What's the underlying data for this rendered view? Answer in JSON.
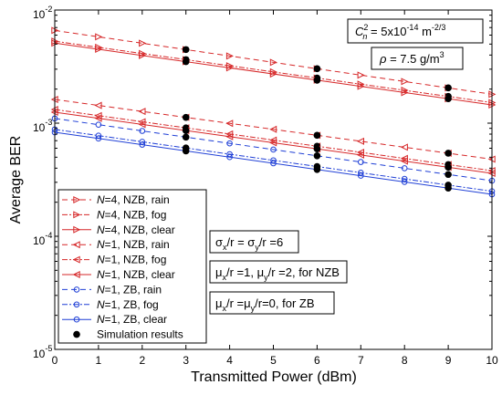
{
  "chart_data": {
    "type": "line",
    "xlabel": "Transmitted Power (dBm)",
    "ylabel": "Average BER",
    "xlim": [
      0,
      10
    ],
    "ylim": [
      1e-05,
      0.01
    ],
    "yscale": "log",
    "x": [
      0,
      1,
      2,
      3,
      4,
      5,
      6,
      7,
      8,
      9,
      10
    ],
    "xticks": [
      "0",
      "1",
      "2",
      "3",
      "4",
      "5",
      "6",
      "7",
      "8",
      "9",
      "10"
    ],
    "yticks": [
      {
        "base": "10",
        "exp": "-5",
        "value": 1e-05
      },
      {
        "base": "10",
        "exp": "-4",
        "value": 0.0001
      },
      {
        "base": "10",
        "exp": "-3",
        "value": 0.001
      },
      {
        "base": "10",
        "exp": "-2",
        "value": 0.01
      }
    ],
    "grid": false,
    "legend_position": "lower-left",
    "series": [
      {
        "name": "N=4, NZB, rain",
        "color": "#d62728",
        "dash": "6,4",
        "marker": "triangle-right",
        "y0": 0.0066,
        "y10": 0.0018
      },
      {
        "name": "N=4, NZB, fog",
        "color": "#d62728",
        "dash": "6,2,2,2",
        "marker": "triangle-right",
        "y0": 0.0053,
        "y10": 0.00152
      },
      {
        "name": "N=4, NZB, clear",
        "color": "#d62728",
        "dash": "",
        "marker": "triangle-right",
        "y0": 0.0051,
        "y10": 0.00145
      },
      {
        "name": "N=1, NZB, rain",
        "color": "#d62728",
        "dash": "6,4",
        "marker": "triangle-left",
        "y0": 0.00162,
        "y10": 0.00048
      },
      {
        "name": "N=1, NZB, fog",
        "color": "#d62728",
        "dash": "6,2,2,2",
        "marker": "triangle-left",
        "y0": 0.00132,
        "y10": 0.00038
      },
      {
        "name": "N=1, NZB, clear",
        "color": "#d62728",
        "dash": "",
        "marker": "triangle-left",
        "y0": 0.00125,
        "y10": 0.00036
      },
      {
        "name": "N=1, ZB, rain",
        "color": "#1f3fd6",
        "dash": "6,4",
        "marker": "circle",
        "y0": 0.0011,
        "y10": 0.00031
      },
      {
        "name": "N=1, ZB, fog",
        "color": "#1f3fd6",
        "dash": "6,2,2,2",
        "marker": "circle",
        "y0": 0.00088,
        "y10": 0.00025
      },
      {
        "name": "N=1, ZB, clear",
        "color": "#1f3fd6",
        "dash": "",
        "marker": "circle",
        "y0": 0.00083,
        "y10": 0.000235
      }
    ],
    "simulation": {
      "name": "Simulation results",
      "x": [
        3,
        6,
        9
      ],
      "note": "filled black dots at x=3,6,9 on every curve"
    },
    "legend_entries": [
      {
        "prefix_italic": "N",
        "text": "=4, NZB, rain"
      },
      {
        "prefix_italic": "N",
        "text": "=4, NZB, fog"
      },
      {
        "prefix_italic": "N",
        "text": "=4, NZB, clear"
      },
      {
        "prefix_italic": "N",
        "text": "=1, NZB, rain"
      },
      {
        "prefix_italic": "N",
        "text": "=1, NZB, fog"
      },
      {
        "prefix_italic": "N",
        "text": "=1, NZB, clear"
      },
      {
        "prefix_italic": "N",
        "text": "=1, ZB, rain"
      },
      {
        "prefix_italic": "N",
        "text": "=1, ZB, fog"
      },
      {
        "prefix_italic": "N",
        "text": "=1, ZB, clear"
      },
      {
        "prefix_italic": "",
        "text": "Simulation results"
      }
    ],
    "annotations": {
      "cn2": {
        "C": "C",
        "sup": "2",
        "sub": "n",
        "eq": " = 5x10",
        "exp": "-14",
        "unit": " m",
        "unit_exp": "-2/3"
      },
      "rho": {
        "sym": "ρ",
        "text": " = 7.5 g/m",
        "exp": "3"
      },
      "sigma": {
        "a": "σ",
        "a_sub": "x",
        "b": "/r = σ",
        "b_sub": "y",
        "c": "/r =6"
      },
      "mu_nzb": {
        "a": "μ",
        "a_sub": "x",
        "b": "/r =1, μ",
        "b_sub": "y",
        "c": "/r =2, for NZB"
      },
      "mu_zb": {
        "a": "μ",
        "a_sub": "x",
        "b": "/r =μ",
        "b_sub": "y",
        "c": "/r=0, for ZB"
      }
    }
  }
}
